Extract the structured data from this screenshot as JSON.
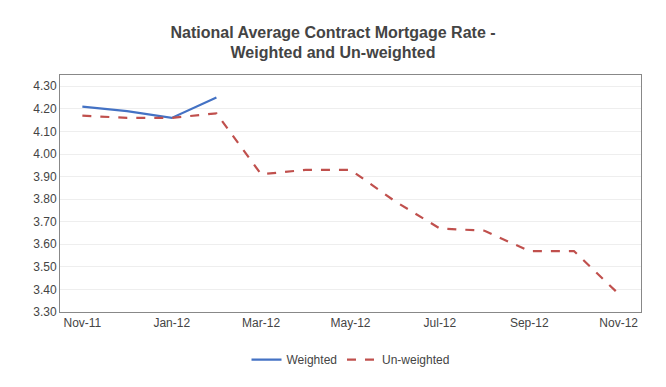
{
  "chart_data": {
    "type": "line",
    "title": "National Average Contract Mortgage Rate -\nWeighted and Un-weighted",
    "categories": [
      "Nov-11",
      null,
      "Jan-12",
      null,
      "Mar-12",
      null,
      "May-12",
      null,
      "Jul-12",
      null,
      "Sep-12",
      null,
      "Nov-12"
    ],
    "series": [
      {
        "name": "Weighted",
        "color": "#4472C4",
        "line_style": "solid",
        "values": [
          4.21,
          4.19,
          4.16,
          4.25,
          null,
          null,
          null,
          null,
          null,
          null,
          null,
          null,
          null
        ]
      },
      {
        "name": "Un-weighted",
        "color": "#C0504D",
        "line_style": "dashed",
        "values": [
          4.17,
          4.16,
          4.16,
          4.18,
          3.91,
          3.93,
          3.93,
          3.79,
          3.67,
          3.66,
          3.57,
          3.57,
          3.38
        ]
      }
    ],
    "ylim": [
      3.3,
      4.35
    ],
    "yticks": [
      {
        "value": 3.3,
        "label": "3.30"
      },
      {
        "value": 3.4,
        "label": "3.40"
      },
      {
        "value": 3.5,
        "label": "3.50"
      },
      {
        "value": 3.6,
        "label": "3.60"
      },
      {
        "value": 3.7,
        "label": "3.70"
      },
      {
        "value": 3.8,
        "label": "3.80"
      },
      {
        "value": 3.9,
        "label": "3.90"
      },
      {
        "value": 4.0,
        "label": "4.00"
      },
      {
        "value": 4.1,
        "label": "4.10"
      },
      {
        "value": 4.2,
        "label": "4.20"
      },
      {
        "value": 4.3,
        "label": "4.30"
      }
    ],
    "grid": true,
    "legend": "bottom"
  }
}
